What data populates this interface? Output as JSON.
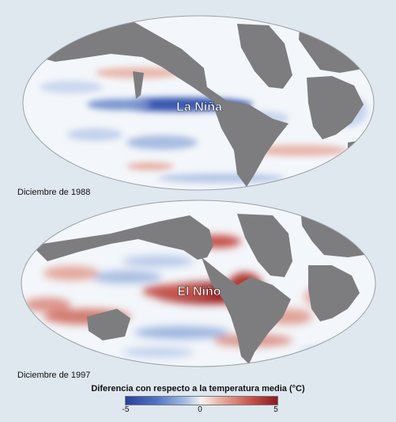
{
  "maps": [
    {
      "label": "La Niña",
      "caption": "Diciembre de 1988"
    },
    {
      "label": "El Niño",
      "caption": "Diciembre de 1997"
    }
  ],
  "legend": {
    "title": "Diferencia con respecto a la temperatura media (°C)",
    "min": "-5",
    "mid": "0",
    "max": "5"
  },
  "colors": {
    "land": "#7d7d80",
    "ocean_neutral": "#f4f6f9",
    "cold": "#2b3f99",
    "warm": "#8c1a1f",
    "page_background": "#dfe7ef"
  }
}
